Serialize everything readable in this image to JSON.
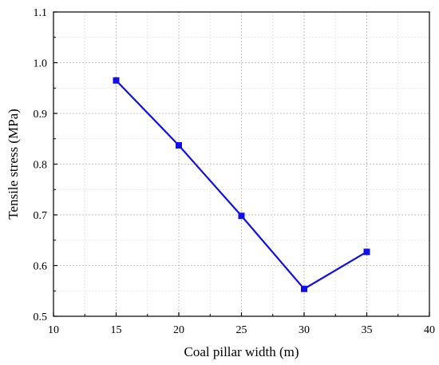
{
  "chart_data": {
    "type": "line",
    "title": "",
    "xlabel": "Coal pillar width (m)",
    "ylabel": "Tensile stress (MPa)",
    "xlim": [
      10,
      40
    ],
    "ylim": [
      0.5,
      1.1
    ],
    "x_ticks": [
      "10",
      "15",
      "20",
      "25",
      "30",
      "35",
      "40"
    ],
    "y_ticks": [
      "0.5",
      "0.6",
      "0.7",
      "0.8",
      "0.9",
      "1.0",
      "1.1"
    ],
    "grid": true,
    "legend": "none",
    "marker": "square",
    "color": "#1010e6",
    "series": [
      {
        "x": [
          15,
          20,
          25,
          30,
          35
        ],
        "y": [
          0.965,
          0.837,
          0.698,
          0.554,
          0.627
        ]
      }
    ]
  }
}
